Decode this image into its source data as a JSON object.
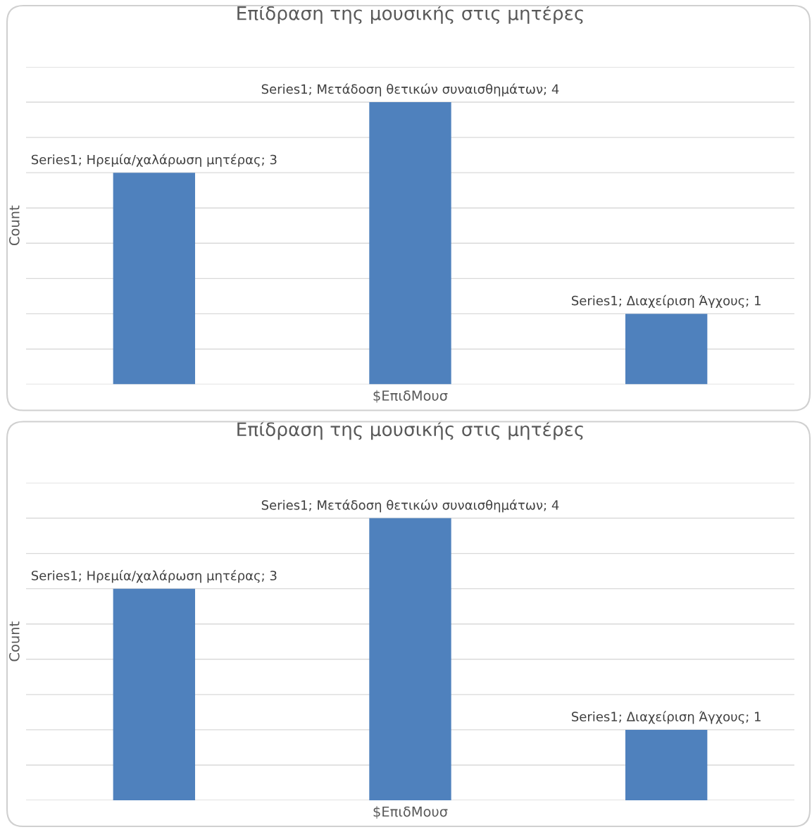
{
  "chart_data": [
    {
      "type": "bar",
      "title": "Επίδραση της μουσικής στις μητέρες",
      "xlabel": "$ΕπιδΜουσ",
      "ylabel": "Count",
      "categories": [
        null,
        null,
        null
      ],
      "values": [
        3,
        4,
        1
      ],
      "value_labels": [
        "Series1; Ηρεμία/χαλάρωση μητέρας; 3",
        "Series1; Μετάδοση θετικών συναισθημάτων; 4",
        "Series1; Διαχείριση Άγχους; 1"
      ],
      "color": "#4f81bd",
      "ylim": [
        0,
        4.5
      ],
      "yticks": [
        {
          "value": 0,
          "label": null
        },
        {
          "value": 0.5,
          "label": null
        },
        {
          "value": 1,
          "label": null
        },
        {
          "value": 1.5,
          "label": null
        },
        {
          "value": 2,
          "label": null
        },
        {
          "value": 2.5,
          "label": null
        },
        {
          "value": 3,
          "label": null
        },
        {
          "value": 3.5,
          "label": null
        },
        {
          "value": 4,
          "label": null
        },
        {
          "value": 4.5,
          "label": null
        }
      ],
      "grid": "y",
      "tick_labels": false
    },
    {
      "type": "bar",
      "title": "Επίδραση της μουσικής στις μητέρες",
      "xlabel": "$ΕπιδΜουσ",
      "ylabel": "Count",
      "categories": [
        null,
        null,
        null
      ],
      "values": [
        3,
        4,
        1
      ],
      "value_labels": [
        "Series1; Ηρεμία/χαλάρωση μητέρας; 3",
        "Series1; Μετάδοση θετικών συναισθημάτων; 4",
        "Series1; Διαχείριση Άγχους; 1"
      ],
      "color": "#4f81bd",
      "ylim": [
        0,
        4.5
      ],
      "yticks": [
        {
          "value": 0,
          "label": null
        },
        {
          "value": 0.5,
          "label": null
        },
        {
          "value": 1,
          "label": null
        },
        {
          "value": 1.5,
          "label": null
        },
        {
          "value": 2,
          "label": null
        },
        {
          "value": 2.5,
          "label": null
        },
        {
          "value": 3,
          "label": null
        },
        {
          "value": 3.5,
          "label": null
        },
        {
          "value": 4,
          "label": null
        },
        {
          "value": 4.5,
          "label": null
        }
      ],
      "grid": "y",
      "tick_labels": false
    }
  ]
}
